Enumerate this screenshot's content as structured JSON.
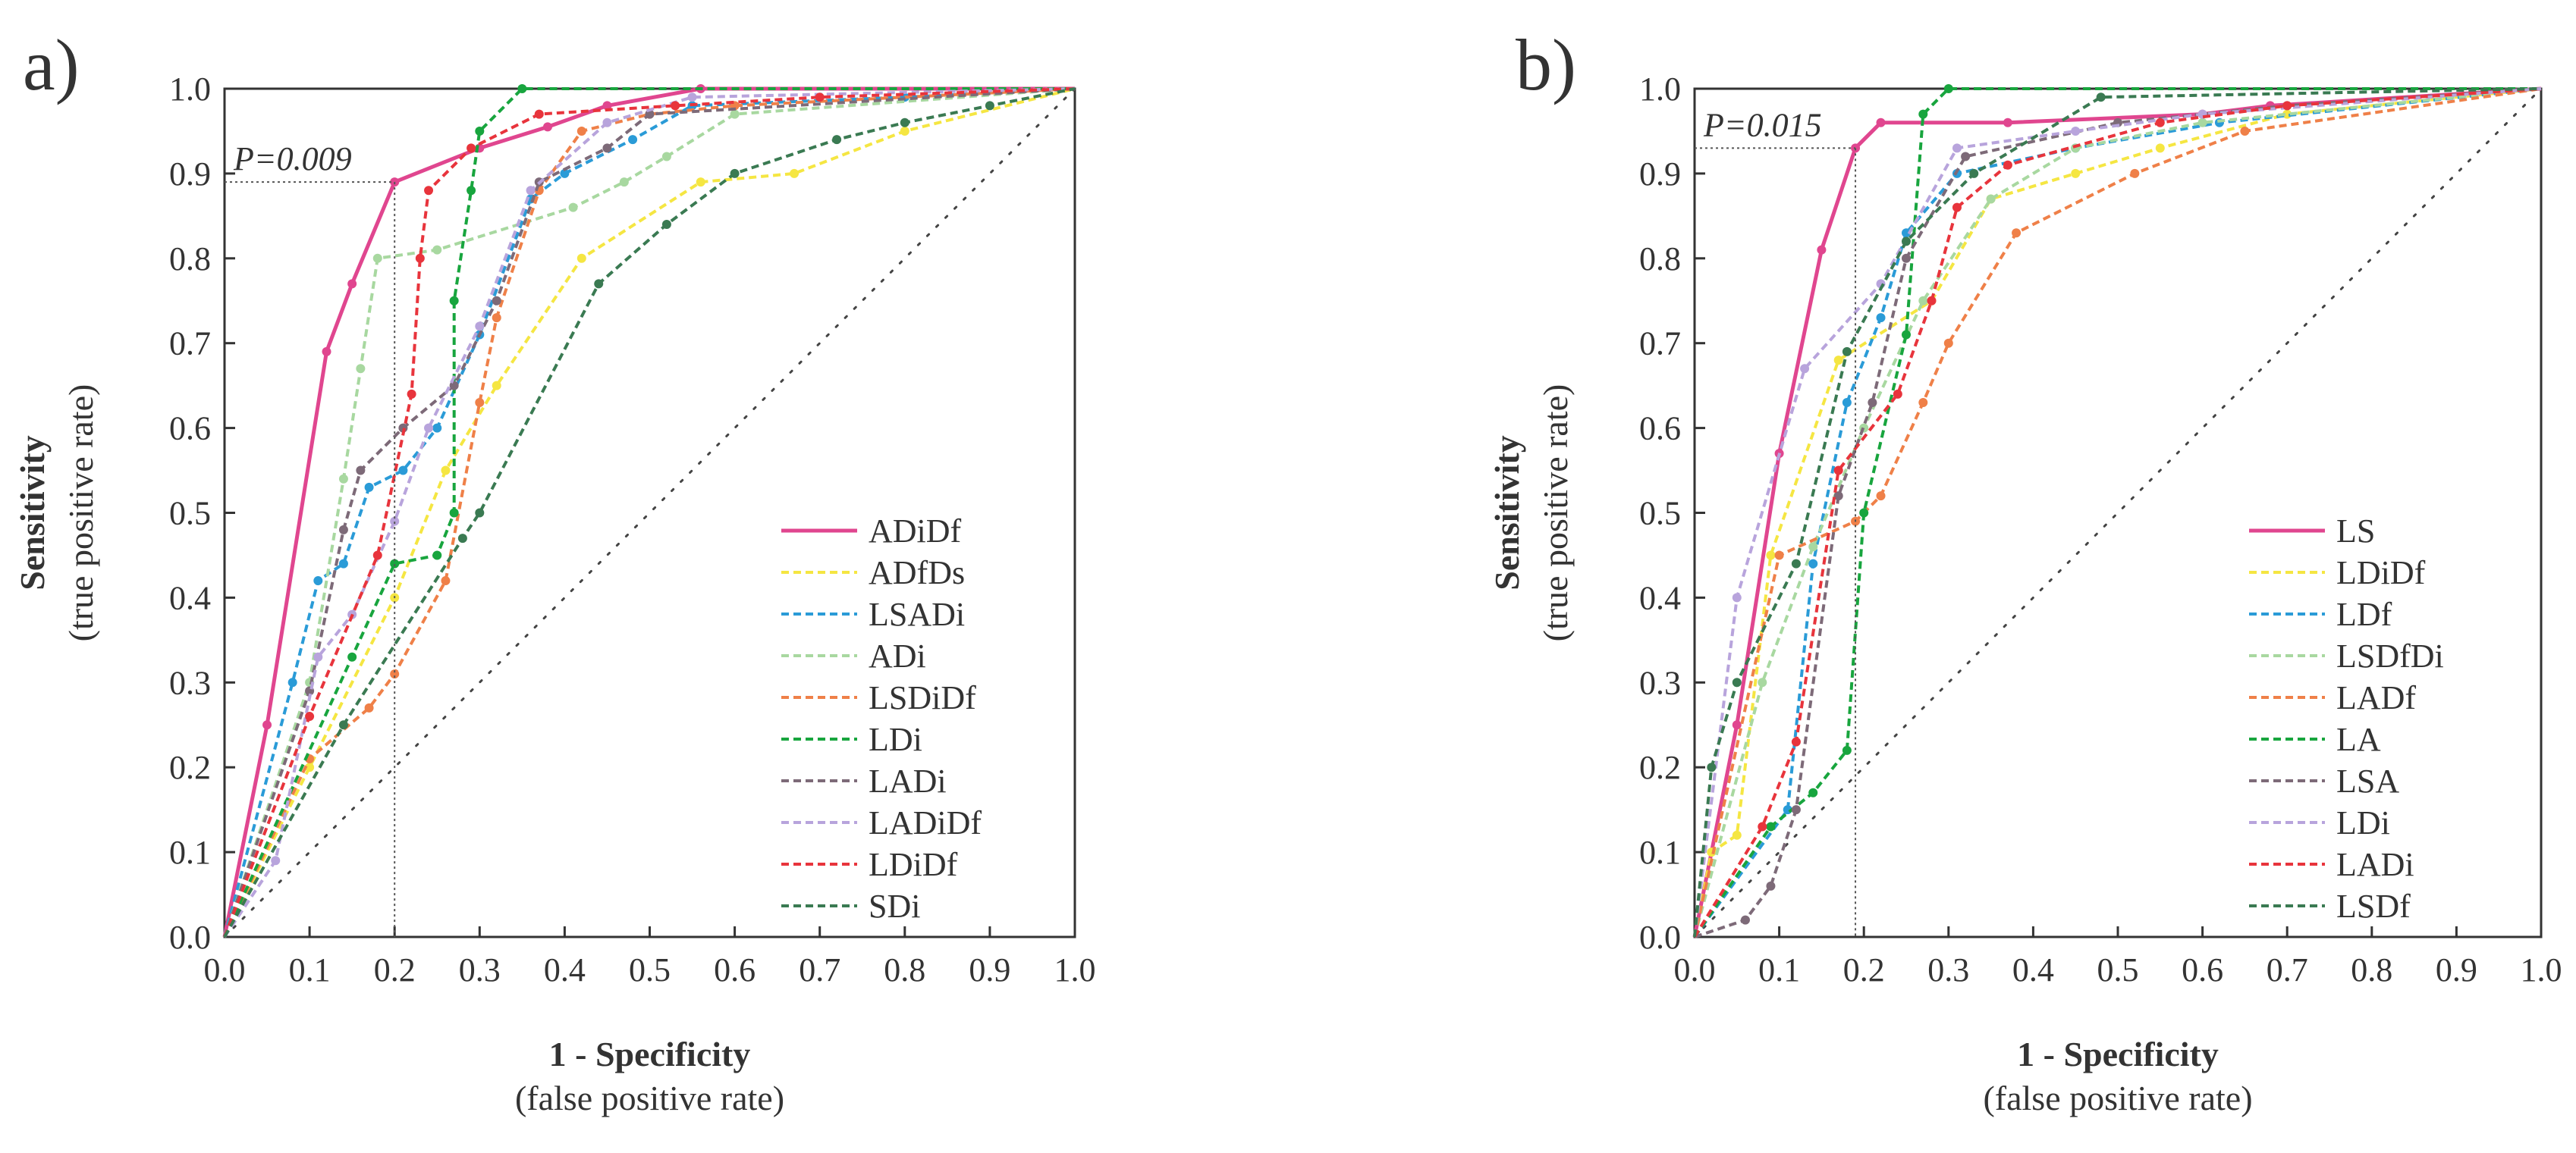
{
  "chart_data": [
    {
      "type": "line",
      "panel_label": "a)",
      "xlabel": "1 - Specificity",
      "xlabel_sub": "(false positive rate)",
      "ylabel": "Sensitivity",
      "ylabel_sub": "(true positive rate)",
      "xlim": [
        0,
        1
      ],
      "ylim": [
        0,
        1
      ],
      "x_ticks": [
        "0.0",
        "0.1",
        "0.2",
        "0.3",
        "0.4",
        "0.5",
        "0.6",
        "0.7",
        "0.8",
        "0.9",
        "1.0"
      ],
      "y_ticks": [
        "0.0",
        "0.1",
        "0.2",
        "0.3",
        "0.4",
        "0.5",
        "0.6",
        "0.7",
        "0.8",
        "0.9",
        "1.0"
      ],
      "grid": false,
      "legend_position": "bottom-right",
      "annotation": {
        "text": "P=0.009",
        "x": 0.2,
        "y": 0.89
      },
      "diagonal": true,
      "series": [
        {
          "name": "ADiDf",
          "color": "#e0468f",
          "style": "solid",
          "points": [
            [
              0,
              0
            ],
            [
              0.05,
              0.25
            ],
            [
              0.12,
              0.69
            ],
            [
              0.15,
              0.77
            ],
            [
              0.2,
              0.89
            ],
            [
              0.3,
              0.93
            ],
            [
              0.38,
              0.955
            ],
            [
              0.45,
              0.98
            ],
            [
              0.56,
              1.0
            ],
            [
              1,
              1
            ]
          ]
        },
        {
          "name": "ADfDs",
          "color": "#f5e642",
          "style": "dashed",
          "points": [
            [
              0,
              0
            ],
            [
              0.1,
              0.2
            ],
            [
              0.2,
              0.4
            ],
            [
              0.26,
              0.55
            ],
            [
              0.32,
              0.65
            ],
            [
              0.42,
              0.8
            ],
            [
              0.56,
              0.89
            ],
            [
              0.67,
              0.9
            ],
            [
              0.8,
              0.95
            ],
            [
              1,
              1
            ]
          ]
        },
        {
          "name": "LSADi",
          "color": "#2a9bd7",
          "style": "dashed",
          "points": [
            [
              0,
              0
            ],
            [
              0.08,
              0.3
            ],
            [
              0.11,
              0.42
            ],
            [
              0.14,
              0.44
            ],
            [
              0.17,
              0.53
            ],
            [
              0.21,
              0.55
            ],
            [
              0.25,
              0.6
            ],
            [
              0.3,
              0.71
            ],
            [
              0.36,
              0.87
            ],
            [
              0.4,
              0.9
            ],
            [
              0.48,
              0.94
            ],
            [
              0.55,
              0.98
            ],
            [
              0.8,
              0.99
            ],
            [
              1,
              1
            ]
          ]
        },
        {
          "name": "ADi",
          "color": "#a8d8a0",
          "style": "dashed",
          "points": [
            [
              0,
              0
            ],
            [
              0.1,
              0.3
            ],
            [
              0.14,
              0.54
            ],
            [
              0.16,
              0.67
            ],
            [
              0.18,
              0.8
            ],
            [
              0.25,
              0.81
            ],
            [
              0.41,
              0.86
            ],
            [
              0.47,
              0.89
            ],
            [
              0.52,
              0.92
            ],
            [
              0.6,
              0.97
            ],
            [
              1,
              1
            ]
          ]
        },
        {
          "name": "LSDiDf",
          "color": "#ef8048",
          "style": "dashed",
          "points": [
            [
              0,
              0
            ],
            [
              0.1,
              0.21
            ],
            [
              0.17,
              0.27
            ],
            [
              0.2,
              0.31
            ],
            [
              0.26,
              0.42
            ],
            [
              0.3,
              0.63
            ],
            [
              0.32,
              0.73
            ],
            [
              0.37,
              0.88
            ],
            [
              0.42,
              0.95
            ],
            [
              0.5,
              0.97
            ],
            [
              0.6,
              0.98
            ],
            [
              1,
              1
            ]
          ]
        },
        {
          "name": "LDi",
          "color": "#18a53e",
          "style": "dashed",
          "points": [
            [
              0,
              0
            ],
            [
              0.15,
              0.33
            ],
            [
              0.2,
              0.44
            ],
            [
              0.25,
              0.45
            ],
            [
              0.27,
              0.5
            ],
            [
              0.27,
              0.75
            ],
            [
              0.29,
              0.88
            ],
            [
              0.3,
              0.95
            ],
            [
              0.35,
              1.0
            ],
            [
              1,
              1
            ]
          ]
        },
        {
          "name": "LADi",
          "color": "#7d6a78",
          "style": "dashed",
          "points": [
            [
              0,
              0
            ],
            [
              0.1,
              0.29
            ],
            [
              0.14,
              0.48
            ],
            [
              0.16,
              0.55
            ],
            [
              0.21,
              0.6
            ],
            [
              0.27,
              0.65
            ],
            [
              0.32,
              0.75
            ],
            [
              0.37,
              0.89
            ],
            [
              0.45,
              0.93
            ],
            [
              0.5,
              0.97
            ],
            [
              1,
              1
            ]
          ]
        },
        {
          "name": "LADiDf",
          "color": "#b8a4dc",
          "style": "dashed",
          "points": [
            [
              0,
              0
            ],
            [
              0.06,
              0.09
            ],
            [
              0.11,
              0.33
            ],
            [
              0.15,
              0.38
            ],
            [
              0.2,
              0.49
            ],
            [
              0.24,
              0.6
            ],
            [
              0.3,
              0.72
            ],
            [
              0.36,
              0.88
            ],
            [
              0.45,
              0.96
            ],
            [
              0.55,
              0.99
            ],
            [
              1,
              1
            ]
          ]
        },
        {
          "name": "LDiDf",
          "color": "#e8343c",
          "style": "dashed",
          "points": [
            [
              0,
              0
            ],
            [
              0.1,
              0.26
            ],
            [
              0.18,
              0.45
            ],
            [
              0.22,
              0.64
            ],
            [
              0.23,
              0.8
            ],
            [
              0.24,
              0.88
            ],
            [
              0.29,
              0.93
            ],
            [
              0.37,
              0.97
            ],
            [
              0.53,
              0.98
            ],
            [
              0.7,
              0.99
            ],
            [
              1,
              1
            ]
          ]
        },
        {
          "name": "SDi",
          "color": "#3a7a52",
          "style": "dashed",
          "points": [
            [
              0,
              0
            ],
            [
              0.14,
              0.25
            ],
            [
              0.28,
              0.47
            ],
            [
              0.3,
              0.5
            ],
            [
              0.44,
              0.77
            ],
            [
              0.52,
              0.84
            ],
            [
              0.6,
              0.9
            ],
            [
              0.72,
              0.94
            ],
            [
              0.8,
              0.96
            ],
            [
              0.9,
              0.98
            ],
            [
              1,
              1
            ]
          ]
        }
      ]
    },
    {
      "type": "line",
      "panel_label": "b)",
      "xlabel": "1 - Specificity",
      "xlabel_sub": "(false positive rate)",
      "ylabel": "Sensitivity",
      "ylabel_sub": "(true positive rate)",
      "xlim": [
        0,
        1
      ],
      "ylim": [
        0,
        1
      ],
      "x_ticks": [
        "0.0",
        "0.1",
        "0.2",
        "0.3",
        "0.4",
        "0.5",
        "0.6",
        "0.7",
        "0.8",
        "0.9",
        "1.0"
      ],
      "y_ticks": [
        "0.0",
        "0.1",
        "0.2",
        "0.3",
        "0.4",
        "0.5",
        "0.6",
        "0.7",
        "0.8",
        "0.9",
        "1.0"
      ],
      "grid": false,
      "legend_position": "bottom-right",
      "annotation": {
        "text": "P=0.015",
        "x": 0.19,
        "y": 0.93
      },
      "diagonal": true,
      "series": [
        {
          "name": "LS",
          "color": "#e0468f",
          "style": "solid",
          "points": [
            [
              0,
              0
            ],
            [
              0.05,
              0.25
            ],
            [
              0.1,
              0.57
            ],
            [
              0.15,
              0.81
            ],
            [
              0.19,
              0.93
            ],
            [
              0.22,
              0.96
            ],
            [
              0.37,
              0.96
            ],
            [
              0.6,
              0.97
            ],
            [
              0.68,
              0.98
            ],
            [
              1,
              1
            ]
          ]
        },
        {
          "name": "LDiDf",
          "color": "#f5e642",
          "style": "dashed",
          "points": [
            [
              0,
              0
            ],
            [
              0.02,
              0.1
            ],
            [
              0.05,
              0.12
            ],
            [
              0.09,
              0.45
            ],
            [
              0.17,
              0.68
            ],
            [
              0.28,
              0.75
            ],
            [
              0.35,
              0.87
            ],
            [
              0.45,
              0.9
            ],
            [
              0.55,
              0.93
            ],
            [
              0.7,
              0.97
            ],
            [
              1,
              1
            ]
          ]
        },
        {
          "name": "LDf",
          "color": "#2a9bd7",
          "style": "dashed",
          "points": [
            [
              0,
              0
            ],
            [
              0.11,
              0.15
            ],
            [
              0.14,
              0.44
            ],
            [
              0.18,
              0.63
            ],
            [
              0.22,
              0.73
            ],
            [
              0.25,
              0.83
            ],
            [
              0.31,
              0.9
            ],
            [
              0.45,
              0.93
            ],
            [
              0.62,
              0.96
            ],
            [
              1,
              1
            ]
          ]
        },
        {
          "name": "LSDfDi",
          "color": "#a8d8a0",
          "style": "dashed",
          "points": [
            [
              0,
              0
            ],
            [
              0.08,
              0.3
            ],
            [
              0.14,
              0.46
            ],
            [
              0.2,
              0.6
            ],
            [
              0.27,
              0.75
            ],
            [
              0.35,
              0.87
            ],
            [
              0.45,
              0.93
            ],
            [
              0.6,
              0.96
            ],
            [
              1,
              1
            ]
          ]
        },
        {
          "name": "LADf",
          "color": "#ef8048",
          "style": "dashed",
          "points": [
            [
              0,
              0
            ],
            [
              0.1,
              0.45
            ],
            [
              0.19,
              0.49
            ],
            [
              0.22,
              0.52
            ],
            [
              0.27,
              0.63
            ],
            [
              0.3,
              0.7
            ],
            [
              0.38,
              0.83
            ],
            [
              0.52,
              0.9
            ],
            [
              0.65,
              0.95
            ],
            [
              1,
              1
            ]
          ]
        },
        {
          "name": "LA",
          "color": "#18a53e",
          "style": "dashed",
          "points": [
            [
              0,
              0
            ],
            [
              0.09,
              0.13
            ],
            [
              0.14,
              0.17
            ],
            [
              0.18,
              0.22
            ],
            [
              0.2,
              0.5
            ],
            [
              0.25,
              0.71
            ],
            [
              0.27,
              0.97
            ],
            [
              0.3,
              1.0
            ],
            [
              1,
              1
            ]
          ]
        },
        {
          "name": "LSA",
          "color": "#7d6a78",
          "style": "dashed",
          "points": [
            [
              0,
              0
            ],
            [
              0.06,
              0.02
            ],
            [
              0.09,
              0.06
            ],
            [
              0.12,
              0.15
            ],
            [
              0.17,
              0.52
            ],
            [
              0.21,
              0.63
            ],
            [
              0.25,
              0.8
            ],
            [
              0.32,
              0.92
            ],
            [
              0.5,
              0.96
            ],
            [
              0.7,
              0.98
            ],
            [
              1,
              1
            ]
          ]
        },
        {
          "name": "LDi",
          "color": "#b8a4dc",
          "style": "dashed",
          "points": [
            [
              0,
              0
            ],
            [
              0.05,
              0.4
            ],
            [
              0.13,
              0.67
            ],
            [
              0.22,
              0.77
            ],
            [
              0.31,
              0.93
            ],
            [
              0.45,
              0.95
            ],
            [
              0.6,
              0.97
            ],
            [
              1,
              1
            ]
          ]
        },
        {
          "name": "LADi",
          "color": "#e8343c",
          "style": "dashed",
          "points": [
            [
              0,
              0
            ],
            [
              0.08,
              0.13
            ],
            [
              0.12,
              0.23
            ],
            [
              0.17,
              0.55
            ],
            [
              0.24,
              0.64
            ],
            [
              0.28,
              0.75
            ],
            [
              0.31,
              0.86
            ],
            [
              0.37,
              0.91
            ],
            [
              0.55,
              0.96
            ],
            [
              0.7,
              0.98
            ],
            [
              1,
              1
            ]
          ]
        },
        {
          "name": "LSDf",
          "color": "#3a7a52",
          "style": "dashed",
          "points": [
            [
              0,
              0
            ],
            [
              0.02,
              0.2
            ],
            [
              0.05,
              0.3
            ],
            [
              0.12,
              0.44
            ],
            [
              0.18,
              0.69
            ],
            [
              0.25,
              0.82
            ],
            [
              0.33,
              0.9
            ],
            [
              0.48,
              0.99
            ],
            [
              1,
              1
            ]
          ]
        }
      ]
    }
  ]
}
